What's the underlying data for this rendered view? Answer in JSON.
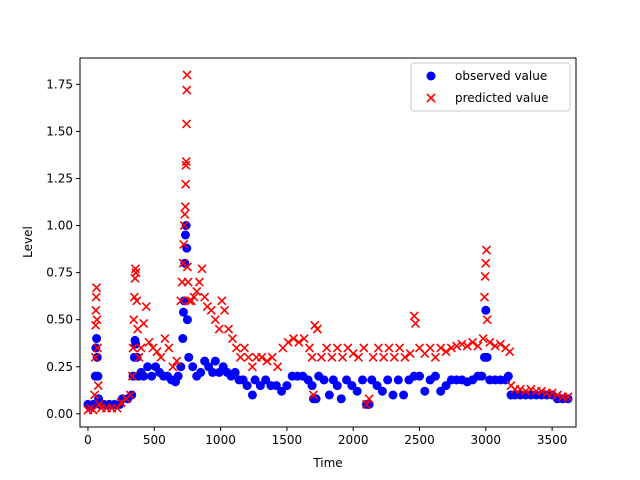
{
  "chart_data": {
    "type": "scatter",
    "title": "",
    "xlabel": "Time",
    "ylabel": "Level",
    "xlim": [
      -60,
      3680
    ],
    "ylim": [
      -0.07,
      1.89
    ],
    "xticks": [
      0,
      500,
      1000,
      1500,
      2000,
      2500,
      3000,
      3500
    ],
    "xtick_labels": [
      "0",
      "500",
      "1000",
      "1500",
      "2000",
      "2500",
      "3000",
      "3500"
    ],
    "yticks": [
      0.0,
      0.25,
      0.5,
      0.75,
      1.0,
      1.25,
      1.5,
      1.75
    ],
    "ytick_labels": [
      "0.00",
      "0.25",
      "0.50",
      "0.75",
      "1.00",
      "1.25",
      "1.50",
      "1.75"
    ],
    "grid": false,
    "legend_position": "upper right",
    "series": [
      {
        "name": "observed value",
        "marker": "circle",
        "color": "#0000ff",
        "points": [
          [
            0,
            0.05
          ],
          [
            20,
            0.04
          ],
          [
            40,
            0.05
          ],
          [
            55,
            0.2
          ],
          [
            60,
            0.35
          ],
          [
            65,
            0.4
          ],
          [
            70,
            0.3
          ],
          [
            75,
            0.2
          ],
          [
            80,
            0.08
          ],
          [
            90,
            0.05
          ],
          [
            120,
            0.05
          ],
          [
            160,
            0.05
          ],
          [
            200,
            0.05
          ],
          [
            240,
            0.05
          ],
          [
            260,
            0.08
          ],
          [
            300,
            0.08
          ],
          [
            330,
            0.1
          ],
          [
            340,
            0.2
          ],
          [
            350,
            0.3
          ],
          [
            355,
            0.39
          ],
          [
            360,
            0.37
          ],
          [
            370,
            0.3
          ],
          [
            380,
            0.2
          ],
          [
            400,
            0.22
          ],
          [
            420,
            0.2
          ],
          [
            450,
            0.25
          ],
          [
            480,
            0.2
          ],
          [
            510,
            0.25
          ],
          [
            540,
            0.22
          ],
          [
            570,
            0.2
          ],
          [
            600,
            0.2
          ],
          [
            630,
            0.18
          ],
          [
            660,
            0.17
          ],
          [
            680,
            0.2
          ],
          [
            700,
            0.25
          ],
          [
            715,
            0.4
          ],
          [
            720,
            0.54
          ],
          [
            725,
            0.6
          ],
          [
            730,
            0.8
          ],
          [
            735,
            0.95
          ],
          [
            740,
            1.0
          ],
          [
            745,
            0.88
          ],
          [
            750,
            0.5
          ],
          [
            760,
            0.3
          ],
          [
            790,
            0.25
          ],
          [
            820,
            0.2
          ],
          [
            850,
            0.22
          ],
          [
            880,
            0.28
          ],
          [
            910,
            0.25
          ],
          [
            940,
            0.22
          ],
          [
            960,
            0.28
          ],
          [
            990,
            0.22
          ],
          [
            1020,
            0.25
          ],
          [
            1050,
            0.22
          ],
          [
            1080,
            0.2
          ],
          [
            1110,
            0.22
          ],
          [
            1140,
            0.18
          ],
          [
            1170,
            0.18
          ],
          [
            1200,
            0.15
          ],
          [
            1240,
            0.1
          ],
          [
            1260,
            0.18
          ],
          [
            1300,
            0.15
          ],
          [
            1340,
            0.18
          ],
          [
            1380,
            0.15
          ],
          [
            1420,
            0.15
          ],
          [
            1460,
            0.12
          ],
          [
            1500,
            0.15
          ],
          [
            1540,
            0.2
          ],
          [
            1580,
            0.2
          ],
          [
            1620,
            0.2
          ],
          [
            1660,
            0.18
          ],
          [
            1690,
            0.15
          ],
          [
            1700,
            0.08
          ],
          [
            1720,
            0.08
          ],
          [
            1740,
            0.2
          ],
          [
            1780,
            0.18
          ],
          [
            1820,
            0.1
          ],
          [
            1850,
            0.18
          ],
          [
            1880,
            0.15
          ],
          [
            1910,
            0.08
          ],
          [
            1950,
            0.18
          ],
          [
            1990,
            0.15
          ],
          [
            2030,
            0.12
          ],
          [
            2070,
            0.18
          ],
          [
            2100,
            0.05
          ],
          [
            2120,
            0.05
          ],
          [
            2140,
            0.18
          ],
          [
            2180,
            0.15
          ],
          [
            2220,
            0.12
          ],
          [
            2260,
            0.18
          ],
          [
            2300,
            0.1
          ],
          [
            2340,
            0.18
          ],
          [
            2380,
            0.1
          ],
          [
            2420,
            0.18
          ],
          [
            2460,
            0.2
          ],
          [
            2500,
            0.2
          ],
          [
            2540,
            0.12
          ],
          [
            2580,
            0.18
          ],
          [
            2620,
            0.2
          ],
          [
            2660,
            0.12
          ],
          [
            2700,
            0.15
          ],
          [
            2740,
            0.18
          ],
          [
            2780,
            0.18
          ],
          [
            2820,
            0.18
          ],
          [
            2860,
            0.17
          ],
          [
            2900,
            0.18
          ],
          [
            2940,
            0.2
          ],
          [
            2970,
            0.2
          ],
          [
            2990,
            0.3
          ],
          [
            3000,
            0.55
          ],
          [
            3010,
            0.3
          ],
          [
            3030,
            0.18
          ],
          [
            3070,
            0.18
          ],
          [
            3110,
            0.18
          ],
          [
            3150,
            0.18
          ],
          [
            3170,
            0.2
          ],
          [
            3190,
            0.1
          ],
          [
            3220,
            0.1
          ],
          [
            3260,
            0.1
          ],
          [
            3300,
            0.1
          ],
          [
            3340,
            0.1
          ],
          [
            3380,
            0.1
          ],
          [
            3420,
            0.1
          ],
          [
            3460,
            0.1
          ],
          [
            3500,
            0.1
          ],
          [
            3540,
            0.08
          ],
          [
            3580,
            0.08
          ],
          [
            3620,
            0.08
          ]
        ]
      },
      {
        "name": "predicted value",
        "marker": "x",
        "color": "#ff0000",
        "points": [
          [
            0,
            0.02
          ],
          [
            20,
            0.03
          ],
          [
            40,
            0.02
          ],
          [
            50,
            0.1
          ],
          [
            55,
            0.3
          ],
          [
            58,
            0.47
          ],
          [
            60,
            0.55
          ],
          [
            62,
            0.62
          ],
          [
            65,
            0.67
          ],
          [
            68,
            0.5
          ],
          [
            72,
            0.35
          ],
          [
            78,
            0.15
          ],
          [
            85,
            0.05
          ],
          [
            100,
            0.03
          ],
          [
            140,
            0.03
          ],
          [
            180,
            0.03
          ],
          [
            220,
            0.03
          ],
          [
            250,
            0.06
          ],
          [
            290,
            0.08
          ],
          [
            320,
            0.1
          ],
          [
            335,
            0.2
          ],
          [
            340,
            0.35
          ],
          [
            345,
            0.5
          ],
          [
            350,
            0.62
          ],
          [
            355,
            0.72
          ],
          [
            358,
            0.77
          ],
          [
            362,
            0.75
          ],
          [
            368,
            0.6
          ],
          [
            375,
            0.45
          ],
          [
            385,
            0.3
          ],
          [
            400,
            0.35
          ],
          [
            420,
            0.48
          ],
          [
            440,
            0.57
          ],
          [
            460,
            0.38
          ],
          [
            490,
            0.35
          ],
          [
            520,
            0.33
          ],
          [
            550,
            0.3
          ],
          [
            580,
            0.4
          ],
          [
            610,
            0.35
          ],
          [
            640,
            0.25
          ],
          [
            670,
            0.28
          ],
          [
            700,
            0.6
          ],
          [
            710,
            0.7
          ],
          [
            718,
            0.8
          ],
          [
            722,
            0.9
          ],
          [
            726,
            1.0
          ],
          [
            730,
            1.06
          ],
          [
            734,
            1.1
          ],
          [
            737,
            1.22
          ],
          [
            739,
            1.32
          ],
          [
            741,
            1.34
          ],
          [
            743,
            1.54
          ],
          [
            745,
            1.72
          ],
          [
            747,
            1.8
          ],
          [
            750,
            0.78
          ],
          [
            755,
            0.7
          ],
          [
            765,
            0.6
          ],
          [
            780,
            0.6
          ],
          [
            800,
            0.62
          ],
          [
            820,
            0.65
          ],
          [
            840,
            0.7
          ],
          [
            860,
            0.77
          ],
          [
            880,
            0.62
          ],
          [
            900,
            0.57
          ],
          [
            930,
            0.55
          ],
          [
            960,
            0.5
          ],
          [
            990,
            0.45
          ],
          [
            1010,
            0.6
          ],
          [
            1030,
            0.55
          ],
          [
            1060,
            0.45
          ],
          [
            1090,
            0.4
          ],
          [
            1120,
            0.35
          ],
          [
            1150,
            0.3
          ],
          [
            1180,
            0.35
          ],
          [
            1210,
            0.3
          ],
          [
            1240,
            0.25
          ],
          [
            1270,
            0.3
          ],
          [
            1310,
            0.3
          ],
          [
            1350,
            0.28
          ],
          [
            1390,
            0.3
          ],
          [
            1430,
            0.25
          ],
          [
            1470,
            0.35
          ],
          [
            1510,
            0.38
          ],
          [
            1550,
            0.4
          ],
          [
            1590,
            0.38
          ],
          [
            1630,
            0.4
          ],
          [
            1670,
            0.35
          ],
          [
            1690,
            0.3
          ],
          [
            1700,
            0.1
          ],
          [
            1710,
            0.47
          ],
          [
            1730,
            0.45
          ],
          [
            1760,
            0.3
          ],
          [
            1800,
            0.35
          ],
          [
            1840,
            0.3
          ],
          [
            1880,
            0.35
          ],
          [
            1920,
            0.3
          ],
          [
            1960,
            0.35
          ],
          [
            2000,
            0.32
          ],
          [
            2040,
            0.3
          ],
          [
            2080,
            0.35
          ],
          [
            2100,
            0.05
          ],
          [
            2120,
            0.08
          ],
          [
            2150,
            0.3
          ],
          [
            2190,
            0.35
          ],
          [
            2230,
            0.3
          ],
          [
            2270,
            0.35
          ],
          [
            2310,
            0.3
          ],
          [
            2350,
            0.35
          ],
          [
            2390,
            0.3
          ],
          [
            2430,
            0.32
          ],
          [
            2460,
            0.52
          ],
          [
            2470,
            0.48
          ],
          [
            2500,
            0.35
          ],
          [
            2540,
            0.32
          ],
          [
            2580,
            0.35
          ],
          [
            2620,
            0.3
          ],
          [
            2660,
            0.35
          ],
          [
            2700,
            0.33
          ],
          [
            2740,
            0.35
          ],
          [
            2780,
            0.36
          ],
          [
            2820,
            0.37
          ],
          [
            2860,
            0.36
          ],
          [
            2900,
            0.38
          ],
          [
            2940,
            0.36
          ],
          [
            2980,
            0.4
          ],
          [
            2990,
            0.62
          ],
          [
            2995,
            0.73
          ],
          [
            3000,
            0.8
          ],
          [
            3005,
            0.87
          ],
          [
            3010,
            0.5
          ],
          [
            3030,
            0.38
          ],
          [
            3070,
            0.36
          ],
          [
            3110,
            0.37
          ],
          [
            3150,
            0.35
          ],
          [
            3180,
            0.33
          ],
          [
            3190,
            0.15
          ],
          [
            3220,
            0.13
          ],
          [
            3260,
            0.13
          ],
          [
            3300,
            0.12
          ],
          [
            3340,
            0.13
          ],
          [
            3380,
            0.12
          ],
          [
            3420,
            0.12
          ],
          [
            3460,
            0.11
          ],
          [
            3500,
            0.11
          ],
          [
            3540,
            0.1
          ],
          [
            3580,
            0.09
          ],
          [
            3620,
            0.09
          ]
        ]
      }
    ]
  }
}
